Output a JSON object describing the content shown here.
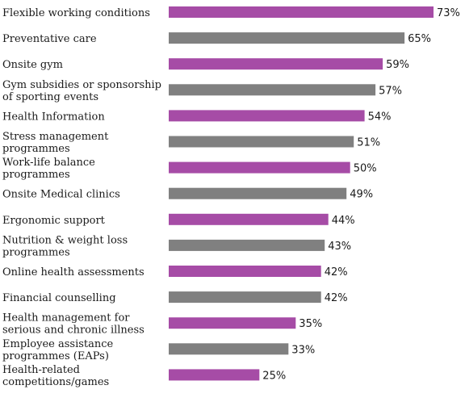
{
  "chart_data": {
    "type": "bar",
    "orientation": "horizontal",
    "categories": [
      [
        "Flexible working conditions"
      ],
      [
        "Preventative care"
      ],
      [
        "Onsite gym"
      ],
      [
        "Gym subsidies or sponsorship",
        " of sporting events"
      ],
      [
        "Health Information"
      ],
      [
        "Stress management",
        "programmes"
      ],
      [
        "Work-life balance",
        "programmes"
      ],
      [
        "Onsite Medical clinics"
      ],
      [
        "Ergonomic support"
      ],
      [
        "Nutrition & weight loss",
        "programmes"
      ],
      [
        "Online health assessments"
      ],
      [
        "Financial counselling"
      ],
      [
        "Health management for",
        "serious and chronic illness"
      ],
      [
        "Employee assistance",
        "programmes (EAPs)"
      ],
      [
        "Health-related",
        "competitions/games"
      ]
    ],
    "values": [
      73,
      65,
      59,
      57,
      54,
      51,
      50,
      49,
      44,
      43,
      42,
      42,
      35,
      33,
      25
    ],
    "value_labels": [
      "73%",
      "65%",
      "59%",
      "57%",
      "54%",
      "51%",
      "50%",
      "49%",
      "44%",
      "43%",
      "42%",
      "42%",
      "35%",
      "33%",
      "25%"
    ],
    "bar_colors": [
      "#a64ca6",
      "#808080"
    ],
    "xlim": [
      0,
      73
    ],
    "grid": false,
    "legend": "none"
  }
}
